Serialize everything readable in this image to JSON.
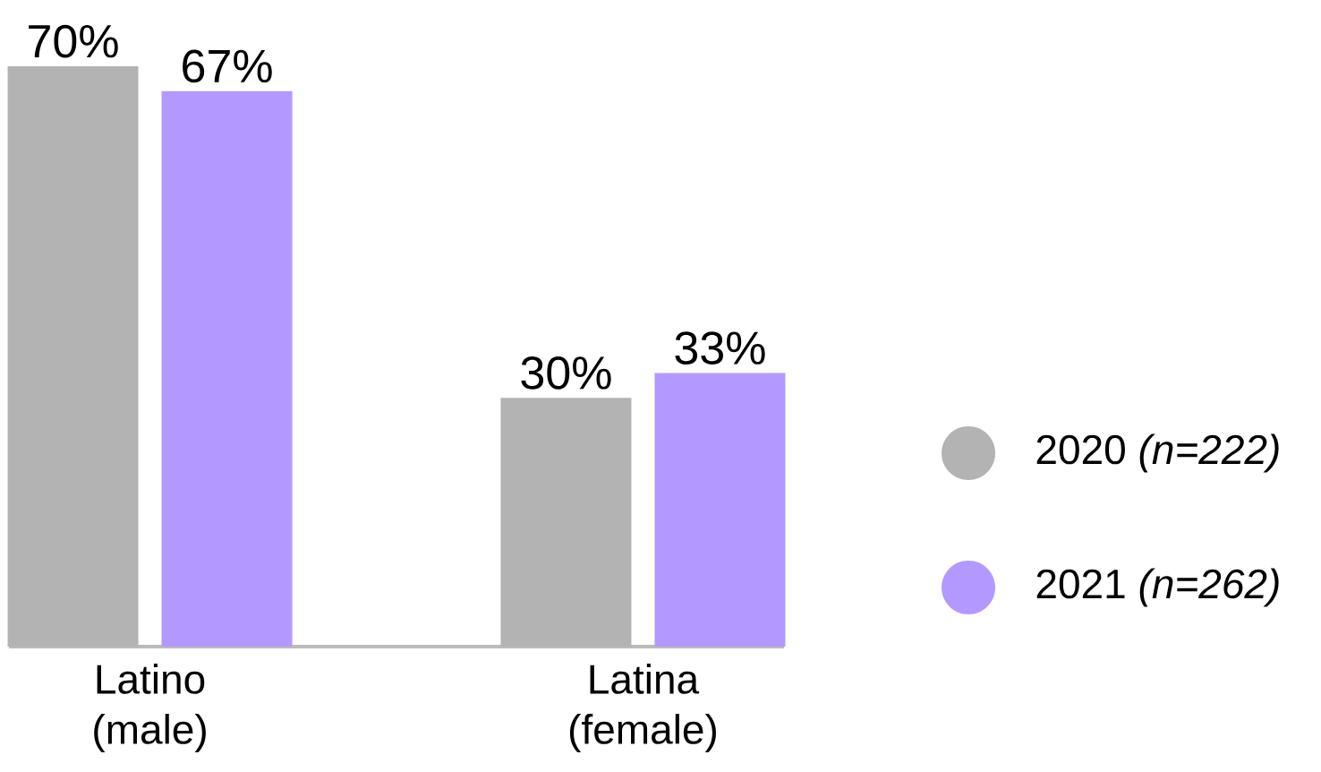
{
  "chart_data": {
    "type": "bar",
    "categories": [
      "Latino (male)",
      "Latina (female)"
    ],
    "series": [
      {
        "name": "2020 *(n=222)*",
        "color": "#b3b3b3",
        "values": [
          70,
          30
        ],
        "value_labels": [
          "70%",
          "30%"
        ]
      },
      {
        "name": "2021 *(n=262)*",
        "color": "#b399ff",
        "values": [
          67,
          33
        ],
        "value_labels": [
          "67%",
          "33%"
        ]
      }
    ],
    "legend": "right",
    "tick_labels": "x"
  }
}
